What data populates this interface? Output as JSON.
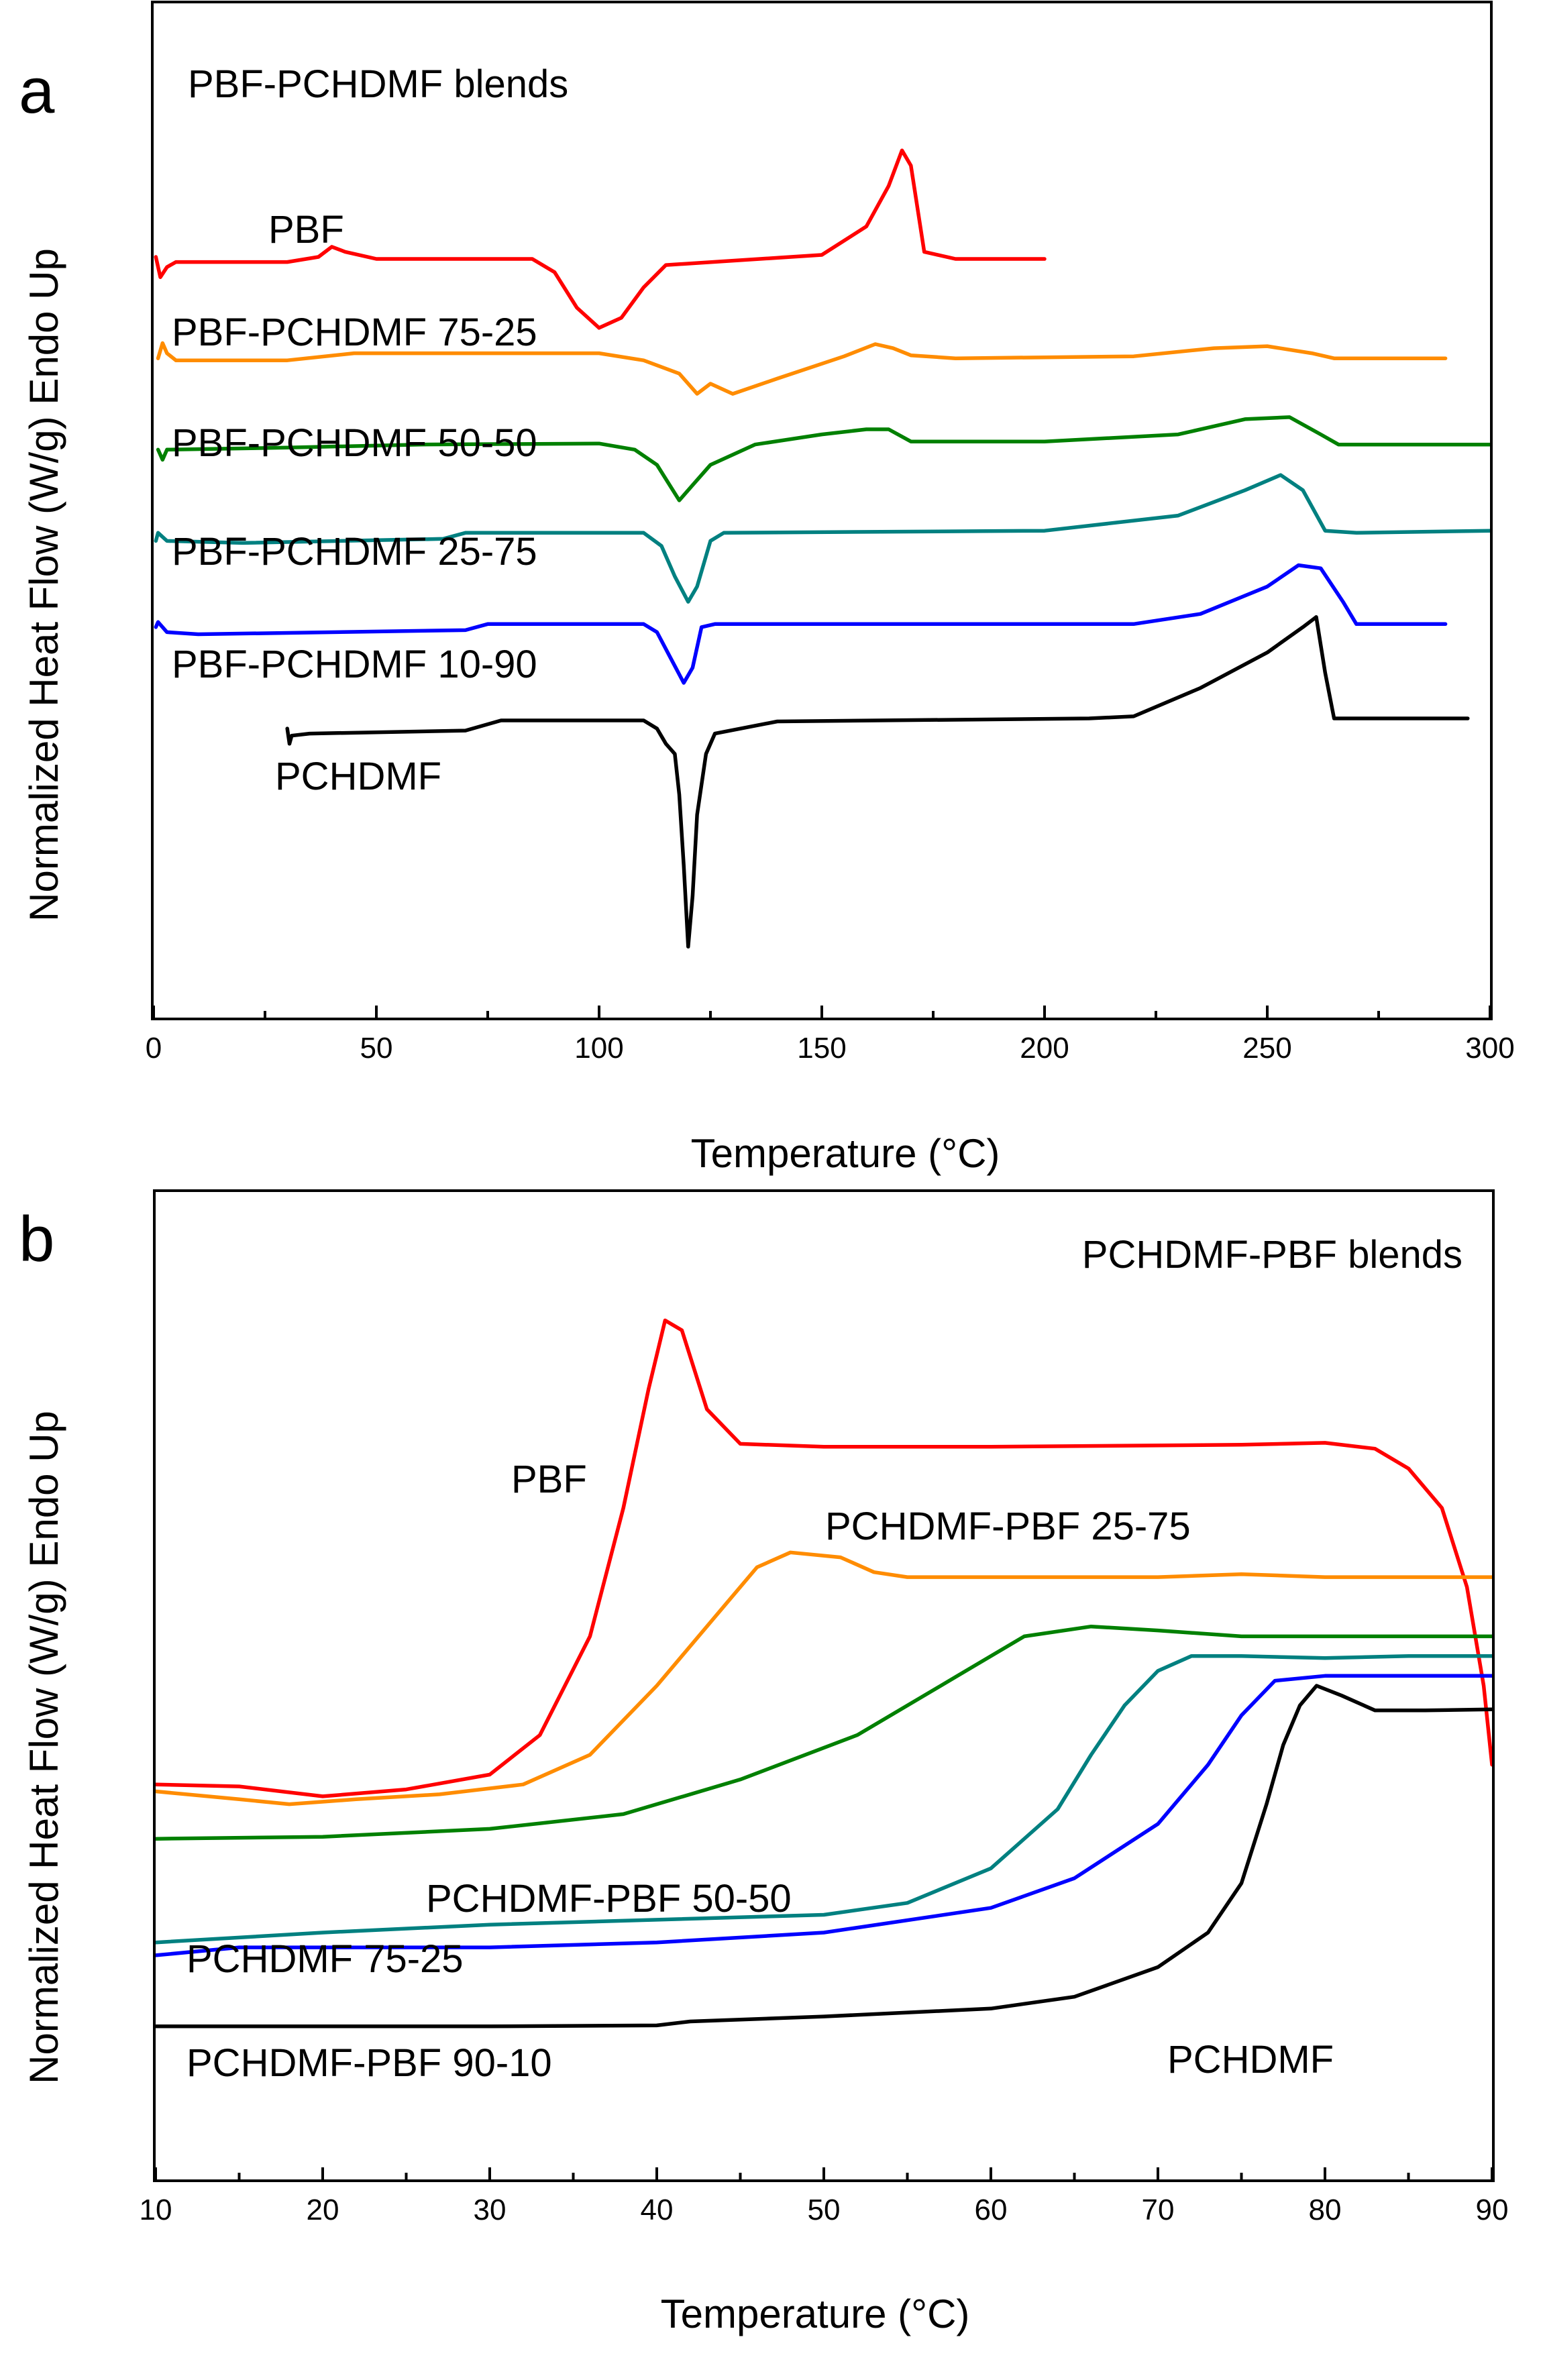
{
  "chart_data": [
    {
      "type": "line",
      "panel": "a",
      "title": "PBF-PCHDMF blends",
      "xlabel": "Temperature (°C)",
      "ylabel": "Normalized Heat Flow (W/g) Endo Up",
      "xlim": [
        0,
        300
      ],
      "x_ticks": [
        0,
        50,
        100,
        150,
        200,
        250,
        300
      ],
      "ylim": [
        0,
        100
      ],
      "y_tick_labels": false,
      "grid": false,
      "series": [
        {
          "name": "PBF",
          "color": "#ff0000",
          "label": "PBF",
          "points": [
            [
              0.5,
              75
            ],
            [
              1.5,
              73
            ],
            [
              3,
              74
            ],
            [
              5,
              74.5
            ],
            [
              30,
              74.5
            ],
            [
              37,
              75
            ],
            [
              40,
              76
            ],
            [
              43,
              75.5
            ],
            [
              50,
              74.8
            ],
            [
              85,
              74.8
            ],
            [
              90,
              73.5
            ],
            [
              95,
              70
            ],
            [
              100,
              68
            ],
            [
              105,
              69
            ],
            [
              110,
              72
            ],
            [
              115,
              74.2
            ],
            [
              150,
              75.2
            ],
            [
              160,
              78
            ],
            [
              165,
              82
            ],
            [
              168,
              85.5
            ],
            [
              170,
              84
            ],
            [
              173,
              75.5
            ],
            [
              180,
              74.8
            ],
            [
              190,
              74.8
            ],
            [
              200,
              74.8
            ]
          ]
        },
        {
          "name": "PBF-PCHDMF 75-25",
          "color": "#ff8c00",
          "label": "PBF-PCHDMF 75-25",
          "points": [
            [
              1,
              65
            ],
            [
              2,
              66.5
            ],
            [
              3,
              65.5
            ],
            [
              5,
              64.8
            ],
            [
              30,
              64.8
            ],
            [
              45,
              65.5
            ],
            [
              100,
              65.5
            ],
            [
              110,
              64.8
            ],
            [
              118,
              63.5
            ],
            [
              122,
              61.5
            ],
            [
              125,
              62.5
            ],
            [
              130,
              61.5
            ],
            [
              140,
              63
            ],
            [
              155,
              65.2
            ],
            [
              162,
              66.4
            ],
            [
              166,
              66
            ],
            [
              170,
              65.3
            ],
            [
              180,
              65
            ],
            [
              220,
              65.2
            ],
            [
              238,
              66
            ],
            [
              250,
              66.2
            ],
            [
              260,
              65.5
            ],
            [
              265,
              65
            ],
            [
              290,
              65
            ]
          ]
        },
        {
          "name": "PBF-PCHDMF 50-50",
          "color": "#008000",
          "label": "PBF-PCHDMF 50-50",
          "points": [
            [
              1,
              56
            ],
            [
              2,
              55
            ],
            [
              3,
              56
            ],
            [
              30,
              56.2
            ],
            [
              60,
              56.5
            ],
            [
              100,
              56.6
            ],
            [
              108,
              56
            ],
            [
              113,
              54.5
            ],
            [
              118,
              51
            ],
            [
              121,
              52.5
            ],
            [
              125,
              54.5
            ],
            [
              135,
              56.5
            ],
            [
              150,
              57.5
            ],
            [
              160,
              58
            ],
            [
              165,
              58
            ],
            [
              170,
              56.8
            ],
            [
              200,
              56.8
            ],
            [
              230,
              57.5
            ],
            [
              245,
              59
            ],
            [
              255,
              59.2
            ],
            [
              262,
              57.5
            ],
            [
              266,
              56.5
            ],
            [
              280,
              56.5
            ],
            [
              300,
              56.5
            ]
          ]
        },
        {
          "name": "PBF-PCHDMF 25-75",
          "color": "#008080",
          "label": "PBF-PCHDMF 25-75",
          "points": [
            [
              0.5,
              47
            ],
            [
              1,
              47.8
            ],
            [
              3,
              47
            ],
            [
              20,
              46.8
            ],
            [
              65,
              47.2
            ],
            [
              70,
              47.8
            ],
            [
              110,
              47.8
            ],
            [
              114,
              46.5
            ],
            [
              117,
              43.5
            ],
            [
              120,
              41
            ],
            [
              122,
              42.5
            ],
            [
              125,
              47
            ],
            [
              128,
              47.8
            ],
            [
              200,
              48
            ],
            [
              230,
              49.5
            ],
            [
              245,
              52
            ],
            [
              253,
              53.5
            ],
            [
              258,
              52
            ],
            [
              263,
              48
            ],
            [
              270,
              47.8
            ],
            [
              300,
              48
            ]
          ]
        },
        {
          "name": "PBF-PCHDMF 10-90",
          "color": "#0000ff",
          "label": "PBF-PCHDMF 10-90",
          "points": [
            [
              0.5,
              38.5
            ],
            [
              1,
              39
            ],
            [
              3,
              38
            ],
            [
              10,
              37.8
            ],
            [
              70,
              38.2
            ],
            [
              75,
              38.8
            ],
            [
              110,
              38.8
            ],
            [
              113,
              38
            ],
            [
              116,
              35.5
            ],
            [
              119,
              33
            ],
            [
              121,
              34.5
            ],
            [
              123,
              38.5
            ],
            [
              126,
              38.8
            ],
            [
              220,
              38.8
            ],
            [
              235,
              39.8
            ],
            [
              250,
              42.5
            ],
            [
              257,
              44.6
            ],
            [
              262,
              44.3
            ],
            [
              267,
              41
            ],
            [
              270,
              38.8
            ],
            [
              290,
              38.8
            ]
          ]
        },
        {
          "name": "PCHDMF",
          "color": "#000000",
          "label": "PCHDMF",
          "points": [
            [
              30,
              28.5
            ],
            [
              30.5,
              27
            ],
            [
              31,
              27.8
            ],
            [
              35,
              28
            ],
            [
              70,
              28.3
            ],
            [
              78,
              29.3
            ],
            [
              110,
              29.3
            ],
            [
              113,
              28.5
            ],
            [
              115,
              27
            ],
            [
              117,
              26
            ],
            [
              118,
              22
            ],
            [
              119,
              15
            ],
            [
              120,
              7
            ],
            [
              121,
              12
            ],
            [
              122,
              20
            ],
            [
              124,
              26
            ],
            [
              126,
              28
            ],
            [
              140,
              29.2
            ],
            [
              210,
              29.5
            ],
            [
              220,
              29.7
            ],
            [
              235,
              32.5
            ],
            [
              250,
              36
            ],
            [
              258,
              38.5
            ],
            [
              261,
              39.5
            ],
            [
              263,
              34
            ],
            [
              265,
              29.5
            ],
            [
              270,
              29.5
            ],
            [
              295,
              29.5
            ]
          ]
        }
      ]
    },
    {
      "type": "line",
      "panel": "b",
      "title": "PCHDMF-PBF blends",
      "xlabel": "Temperature (°C)",
      "ylabel": "Normalized Heat Flow (W/g) Endo Up",
      "xlim": [
        10,
        90
      ],
      "x_ticks": [
        10,
        20,
        30,
        40,
        50,
        60,
        70,
        80,
        90
      ],
      "ylim": [
        0,
        100
      ],
      "y_tick_labels": false,
      "grid": false,
      "series": [
        {
          "name": "PBF",
          "color": "#ff0000",
          "label": "PBF",
          "points": [
            [
              10,
              40
            ],
            [
              15,
              39.8
            ],
            [
              20,
              38.8
            ],
            [
              25,
              39.5
            ],
            [
              30,
              41
            ],
            [
              33,
              45
            ],
            [
              36,
              55
            ],
            [
              38,
              68
            ],
            [
              39.5,
              80
            ],
            [
              40.5,
              87
            ],
            [
              41.5,
              86
            ],
            [
              43,
              78
            ],
            [
              45,
              74.5
            ],
            [
              50,
              74.2
            ],
            [
              60,
              74.2
            ],
            [
              75,
              74.4
            ],
            [
              80,
              74.6
            ],
            [
              83,
              74
            ],
            [
              85,
              72
            ],
            [
              87,
              68
            ],
            [
              88.5,
              60
            ],
            [
              89.5,
              50
            ],
            [
              90,
              42
            ]
          ]
        },
        {
          "name": "PCHDMF-PBF 25-75",
          "color": "#ff8c00",
          "label": "PCHDMF-PBF 25-75",
          "points": [
            [
              10,
              39.3
            ],
            [
              15,
              38.5
            ],
            [
              18,
              38
            ],
            [
              22,
              38.5
            ],
            [
              27,
              39
            ],
            [
              32,
              40
            ],
            [
              36,
              43
            ],
            [
              40,
              50
            ],
            [
              44,
              58
            ],
            [
              46,
              62
            ],
            [
              48,
              63.5
            ],
            [
              51,
              63
            ],
            [
              53,
              61.5
            ],
            [
              55,
              61
            ],
            [
              60,
              61
            ],
            [
              70,
              61
            ],
            [
              75,
              61.3
            ],
            [
              80,
              61
            ],
            [
              90,
              61
            ]
          ]
        },
        {
          "name": "PCHDMF-PBF 50-50",
          "color": "#008000",
          "label": "PCHDMF-PBF 50-50",
          "points": [
            [
              10,
              34.5
            ],
            [
              20,
              34.7
            ],
            [
              30,
              35.5
            ],
            [
              38,
              37
            ],
            [
              45,
              40.5
            ],
            [
              52,
              45
            ],
            [
              58,
              51
            ],
            [
              62,
              55
            ],
            [
              66,
              56
            ],
            [
              70,
              55.6
            ],
            [
              75,
              55
            ],
            [
              80,
              55
            ],
            [
              90,
              55
            ]
          ]
        },
        {
          "name": "PCHDMF 75-25",
          "color": "#008080",
          "label": "PCHDMF 75-25",
          "points": [
            [
              10,
              24
            ],
            [
              20,
              25
            ],
            [
              30,
              25.8
            ],
            [
              40,
              26.3
            ],
            [
              50,
              26.8
            ],
            [
              55,
              28
            ],
            [
              60,
              31.5
            ],
            [
              64,
              37.5
            ],
            [
              66,
              43
            ],
            [
              68,
              48
            ],
            [
              70,
              51.5
            ],
            [
              72,
              53
            ],
            [
              75,
              53
            ],
            [
              80,
              52.8
            ],
            [
              85,
              53
            ],
            [
              90,
              53
            ]
          ]
        },
        {
          "name": "PCHDMF-PBF 90-10",
          "color": "#0000ff",
          "label": "PCHDMF-PBF 90-10",
          "points": [
            [
              10,
              22.7
            ],
            [
              15,
              23.5
            ],
            [
              20,
              23.5
            ],
            [
              30,
              23.5
            ],
            [
              40,
              24
            ],
            [
              50,
              25
            ],
            [
              60,
              27.5
            ],
            [
              65,
              30.5
            ],
            [
              70,
              36
            ],
            [
              73,
              42
            ],
            [
              75,
              47
            ],
            [
              77,
              50.5
            ],
            [
              80,
              51
            ],
            [
              85,
              51
            ],
            [
              90,
              51
            ]
          ]
        },
        {
          "name": "PCHDMF",
          "color": "#000000",
          "label": "PCHDMF",
          "points": [
            [
              10,
              15.5
            ],
            [
              20,
              15.5
            ],
            [
              30,
              15.5
            ],
            [
              40,
              15.6
            ],
            [
              42,
              16
            ],
            [
              50,
              16.5
            ],
            [
              60,
              17.3
            ],
            [
              65,
              18.5
            ],
            [
              70,
              21.5
            ],
            [
              73,
              25
            ],
            [
              75,
              30
            ],
            [
              76.5,
              38
            ],
            [
              77.5,
              44
            ],
            [
              78.5,
              48
            ],
            [
              79.5,
              50
            ],
            [
              81,
              49
            ],
            [
              83,
              47.5
            ],
            [
              86,
              47.5
            ],
            [
              90,
              47.6
            ]
          ]
        }
      ]
    }
  ]
}
